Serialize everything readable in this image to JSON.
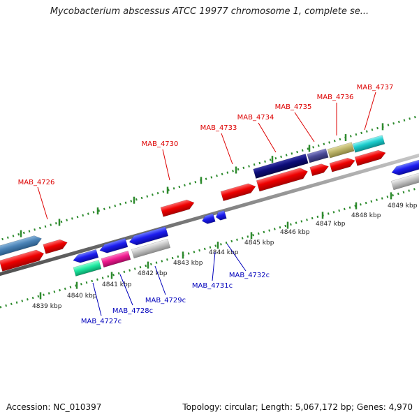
{
  "title": "Mycobacterium abscessus ATCC 19977 chromosome 1, complete se...",
  "footer": {
    "accession": "Accession: NC_010397",
    "summary": "Topology: circular; Length: 5,067,172 bp; Genes: 4,970"
  },
  "colors": {
    "forward_label": "#dd0000",
    "reverse_label": "#0000bb",
    "backbone": "#888888",
    "tick": "#2e8b2e"
  },
  "tick_labels": [
    "4839 kbp",
    "4840 kbp",
    "4841 kbp",
    "4842 kbp",
    "4843 kbp",
    "4844 kbp",
    "4845 kbp",
    "4846 kbp",
    "4847 kbp",
    "4848 kbp",
    "4849 kbp"
  ],
  "forward_gene_labels": [
    "MAB_4726",
    "MAB_4730",
    "MAB_4733",
    "MAB_4734",
    "MAB_4735",
    "MAB_4736",
    "MAB_4737"
  ],
  "reverse_gene_labels": [
    "MAB_4727c",
    "MAB_4728c",
    "MAB_4729c",
    "MAB_4731c",
    "MAB_4732c"
  ]
}
